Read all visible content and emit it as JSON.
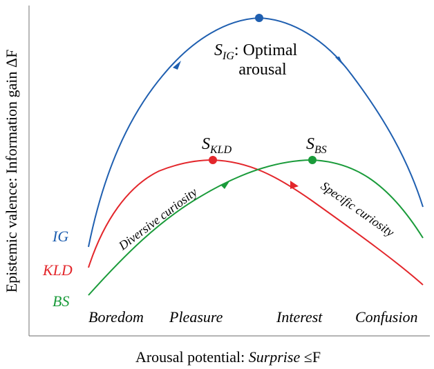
{
  "axes": {
    "y_label": "Epistemic valence: Information gain ΔF",
    "x_label_prefix": "Arousal potential: ",
    "x_label_italic": "Surprise",
    "x_label_suffix": " ≤F"
  },
  "curves": [
    {
      "name": "IG",
      "color": "#1f5fb0"
    },
    {
      "name": "KLD",
      "color": "#e3262b"
    },
    {
      "name": "BS",
      "color": "#1a9b3a"
    }
  ],
  "regions": [
    "Boredom",
    "Pleasure",
    "Interest",
    "Confusion"
  ],
  "peaks": {
    "ig_label_main": "S",
    "ig_label_sub": "IG",
    "ig_label_rest": ": Optimal",
    "ig_label_line2": "arousal",
    "kld_label_main": "S",
    "kld_label_sub": "KLD",
    "bs_label_main": "S",
    "bs_label_sub": "BS"
  },
  "annotations": {
    "diversive": "Diversive curiosity",
    "specific": "Specific curiosity"
  }
}
